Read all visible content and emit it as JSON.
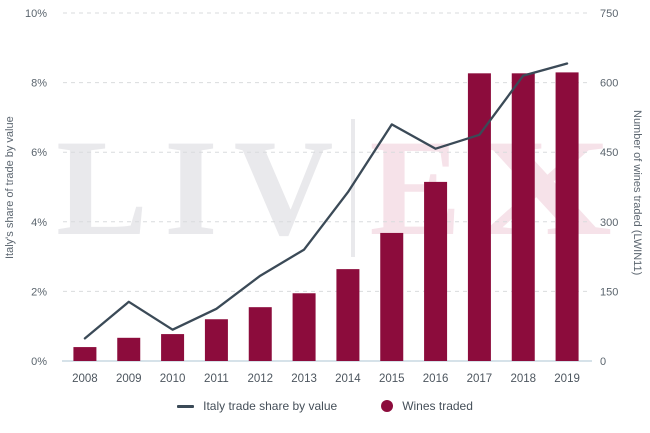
{
  "chart_data": {
    "type": "combo",
    "title": "",
    "categories": [
      "2008",
      "2009",
      "2010",
      "2011",
      "2012",
      "2013",
      "2014",
      "2015",
      "2016",
      "2017",
      "2018",
      "2019"
    ],
    "series": [
      {
        "name": "Italy trade share by value",
        "type": "line",
        "axis": "left",
        "unit": "%",
        "color": "#3b4a57",
        "values": [
          0.65,
          1.7,
          0.9,
          1.5,
          2.45,
          3.2,
          4.85,
          6.8,
          6.1,
          6.5,
          8.2,
          8.55
        ]
      },
      {
        "name": "Wines traded",
        "type": "bar",
        "axis": "right",
        "color": "#8c0c3c",
        "values": [
          30,
          50,
          58,
          90,
          116,
          146,
          198,
          276,
          386,
          620,
          620,
          622
        ]
      }
    ],
    "left_axis": {
      "label": "Italy's share of trade by value",
      "min": 0,
      "max": 10,
      "tick_step": 2,
      "ticks": [
        "0%",
        "2%",
        "4%",
        "6%",
        "8%",
        "10%"
      ]
    },
    "right_axis": {
      "label": "Number of wines traded (LWIN11)",
      "min": 0,
      "max": 750,
      "tick_step": 150,
      "ticks": [
        "0",
        "150",
        "300",
        "450",
        "600",
        "750"
      ]
    },
    "grid": {
      "horizontal": true,
      "style": "dashed",
      "color": "#d9dbdd"
    },
    "legend": {
      "position": "bottom",
      "items": [
        {
          "label": "Italy trade share by value",
          "marker": "line",
          "color": "#3b4a57"
        },
        {
          "label": "Wines traded",
          "marker": "circle",
          "color": "#8c0c3c"
        }
      ]
    }
  },
  "watermark": {
    "gray_text": "LIV",
    "pink_e": "E",
    "pink_x": "X",
    "gray_color": "#e9e9ec",
    "pink_color": "#f6e2e9"
  },
  "colors": {
    "background": "#ffffff",
    "tick_label": "#5b656e",
    "year_label": "#4d565f",
    "baseline": "#c9d8e2"
  }
}
